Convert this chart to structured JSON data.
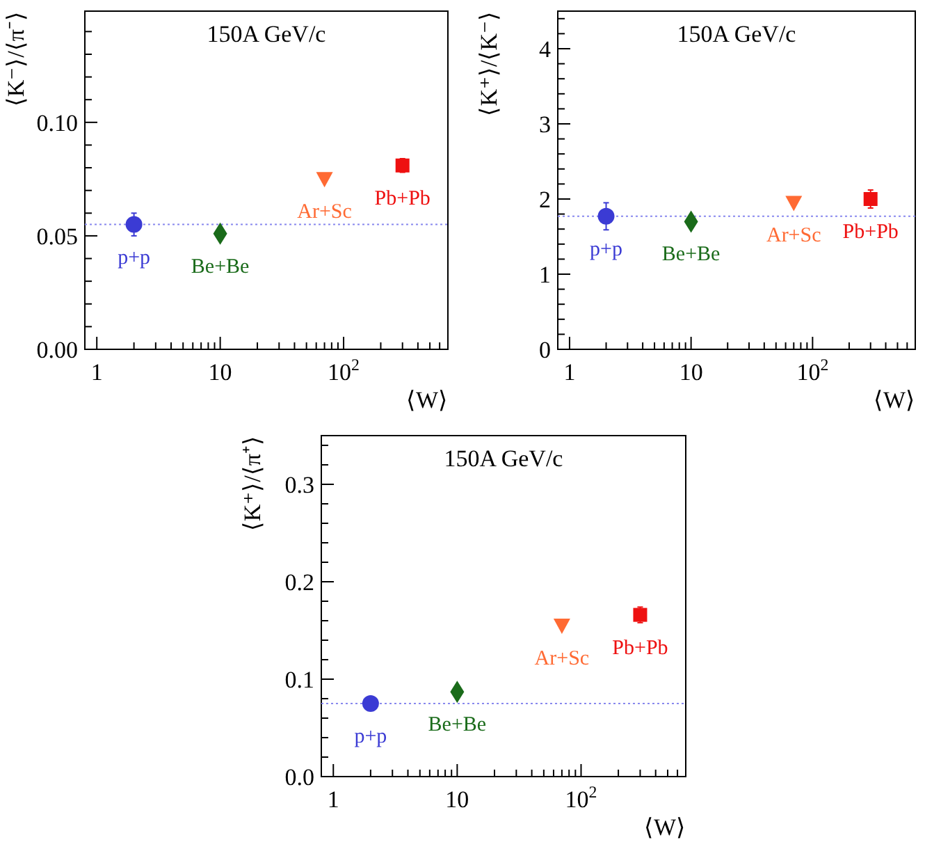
{
  "chart_data": [
    {
      "type": "scatter",
      "title": "150A GeV/c",
      "xlabel": "⟨W⟩",
      "ylabel": "⟨K⁻⟩/⟨π⁻⟩",
      "log": "x",
      "xlim": [
        0.8,
        700
      ],
      "xticks": [
        {
          "value": 1,
          "label": "1"
        },
        {
          "value": 10,
          "label": "10"
        },
        {
          "value": 100,
          "label": "10$^{2}$"
        },
        {
          "value": 2,
          "label": null
        },
        {
          "value": 3,
          "label": null
        },
        {
          "value": 4,
          "label": null
        },
        {
          "value": 5,
          "label": null
        },
        {
          "value": 6,
          "label": null
        },
        {
          "value": 7,
          "label": null
        },
        {
          "value": 8,
          "label": null
        },
        {
          "value": 9,
          "label": null
        },
        {
          "value": 20,
          "label": null
        },
        {
          "value": 30,
          "label": null
        },
        {
          "value": 40,
          "label": null
        },
        {
          "value": 50,
          "label": null
        },
        {
          "value": 60,
          "label": null
        },
        {
          "value": 70,
          "label": null
        },
        {
          "value": 80,
          "label": null
        },
        {
          "value": 90,
          "label": null
        },
        {
          "value": 200,
          "label": null
        },
        {
          "value": 300,
          "label": null
        },
        {
          "value": 400,
          "label": null
        },
        {
          "value": 500,
          "label": null
        },
        {
          "value": 600,
          "label": null
        },
        {
          "value": 700,
          "label": null
        }
      ],
      "ylim": [
        0,
        0.149
      ],
      "yticks": [
        {
          "value": 0,
          "label": "0.00"
        },
        {
          "value": 0.05,
          "label": "0.05"
        },
        {
          "value": 0.1,
          "label": "0.10"
        },
        {
          "value": 0.01,
          "label": null
        },
        {
          "value": 0.02,
          "label": null
        },
        {
          "value": 0.03,
          "label": null
        },
        {
          "value": 0.04,
          "label": null
        },
        {
          "value": 0.06,
          "label": null
        },
        {
          "value": 0.07,
          "label": null
        },
        {
          "value": 0.08,
          "label": null
        },
        {
          "value": 0.09,
          "label": null
        },
        {
          "value": 0.11,
          "label": null
        },
        {
          "value": 0.12,
          "label": null
        },
        {
          "value": 0.13,
          "label": null
        },
        {
          "value": 0.14,
          "label": null
        }
      ],
      "ref_lines": [
        {
          "axis": "y",
          "value": 0.055,
          "color": "#8888ee",
          "line_style": "dotted"
        }
      ],
      "series": [
        {
          "name": "p+p",
          "color": "#3b3bd4",
          "marker": "circle",
          "x": [
            2
          ],
          "values": [
            0.055
          ],
          "errors": [
            0.005
          ]
        },
        {
          "name": "Be+Be",
          "color": "#1a6b1a",
          "marker": "diamond",
          "x": [
            10
          ],
          "values": [
            0.051
          ]
        },
        {
          "name": "Ar+Sc",
          "color": "#ff6a33",
          "marker": "triangle",
          "x": [
            70
          ],
          "values": [
            0.075
          ]
        },
        {
          "name": "Pb+Pb",
          "color": "#ee1111",
          "marker": "square",
          "x": [
            300
          ],
          "values": [
            0.081
          ],
          "errors": [
            0.003
          ]
        }
      ]
    },
    {
      "type": "scatter",
      "title": "150A GeV/c",
      "xlabel": "⟨W⟩",
      "ylabel": "⟨K⁺⟩/⟨K⁻⟩",
      "log": "x",
      "xlim": [
        0.8,
        700
      ],
      "xticks": [
        {
          "value": 1,
          "label": "1"
        },
        {
          "value": 10,
          "label": "10"
        },
        {
          "value": 100,
          "label": "10$^{2}$"
        },
        {
          "value": 2,
          "label": null
        },
        {
          "value": 3,
          "label": null
        },
        {
          "value": 4,
          "label": null
        },
        {
          "value": 5,
          "label": null
        },
        {
          "value": 6,
          "label": null
        },
        {
          "value": 7,
          "label": null
        },
        {
          "value": 8,
          "label": null
        },
        {
          "value": 9,
          "label": null
        },
        {
          "value": 20,
          "label": null
        },
        {
          "value": 30,
          "label": null
        },
        {
          "value": 40,
          "label": null
        },
        {
          "value": 50,
          "label": null
        },
        {
          "value": 60,
          "label": null
        },
        {
          "value": 70,
          "label": null
        },
        {
          "value": 80,
          "label": null
        },
        {
          "value": 90,
          "label": null
        },
        {
          "value": 200,
          "label": null
        },
        {
          "value": 300,
          "label": null
        },
        {
          "value": 400,
          "label": null
        },
        {
          "value": 500,
          "label": null
        },
        {
          "value": 600,
          "label": null
        },
        {
          "value": 700,
          "label": null
        }
      ],
      "ylim": [
        0,
        4.5
      ],
      "yticks": [
        {
          "value": 0,
          "label": "0"
        },
        {
          "value": 1,
          "label": "1"
        },
        {
          "value": 2,
          "label": "2"
        },
        {
          "value": 3,
          "label": "3"
        },
        {
          "value": 4,
          "label": "4"
        },
        {
          "value": 0.2,
          "label": null
        },
        {
          "value": 0.4,
          "label": null
        },
        {
          "value": 0.6,
          "label": null
        },
        {
          "value": 0.8,
          "label": null
        },
        {
          "value": 1.2,
          "label": null
        },
        {
          "value": 1.4,
          "label": null
        },
        {
          "value": 1.6,
          "label": null
        },
        {
          "value": 1.8,
          "label": null
        },
        {
          "value": 2.2,
          "label": null
        },
        {
          "value": 2.4,
          "label": null
        },
        {
          "value": 2.6,
          "label": null
        },
        {
          "value": 2.8,
          "label": null
        },
        {
          "value": 3.2,
          "label": null
        },
        {
          "value": 3.4,
          "label": null
        },
        {
          "value": 3.6,
          "label": null
        },
        {
          "value": 3.8,
          "label": null
        },
        {
          "value": 4.2,
          "label": null
        },
        {
          "value": 4.4,
          "label": null
        }
      ],
      "ref_lines": [
        {
          "axis": "y",
          "value": 1.77,
          "color": "#8888ee",
          "line_style": "dotted"
        }
      ],
      "series": [
        {
          "name": "p+p",
          "color": "#3b3bd4",
          "marker": "circle",
          "x": [
            2
          ],
          "values": [
            1.77
          ],
          "errors": [
            0.18
          ]
        },
        {
          "name": "Be+Be",
          "color": "#1a6b1a",
          "marker": "diamond",
          "x": [
            10
          ],
          "values": [
            1.7
          ]
        },
        {
          "name": "Ar+Sc",
          "color": "#ff6a33",
          "marker": "triangle",
          "x": [
            70
          ],
          "values": [
            1.95
          ]
        },
        {
          "name": "Pb+Pb",
          "color": "#ee1111",
          "marker": "square",
          "x": [
            300
          ],
          "values": [
            2.0
          ],
          "errors": [
            0.12
          ]
        }
      ]
    },
    {
      "type": "scatter",
      "title": "150A GeV/c",
      "xlabel": "⟨W⟩",
      "ylabel": "⟨K⁺⟩/⟨π⁺⟩",
      "log": "x",
      "xlim": [
        0.8,
        700
      ],
      "xticks": [
        {
          "value": 1,
          "label": "1"
        },
        {
          "value": 10,
          "label": "10"
        },
        {
          "value": 100,
          "label": "10$^{2}$"
        },
        {
          "value": 2,
          "label": null
        },
        {
          "value": 3,
          "label": null
        },
        {
          "value": 4,
          "label": null
        },
        {
          "value": 5,
          "label": null
        },
        {
          "value": 6,
          "label": null
        },
        {
          "value": 7,
          "label": null
        },
        {
          "value": 8,
          "label": null
        },
        {
          "value": 9,
          "label": null
        },
        {
          "value": 20,
          "label": null
        },
        {
          "value": 30,
          "label": null
        },
        {
          "value": 40,
          "label": null
        },
        {
          "value": 50,
          "label": null
        },
        {
          "value": 60,
          "label": null
        },
        {
          "value": 70,
          "label": null
        },
        {
          "value": 80,
          "label": null
        },
        {
          "value": 90,
          "label": null
        },
        {
          "value": 200,
          "label": null
        },
        {
          "value": 300,
          "label": null
        },
        {
          "value": 400,
          "label": null
        },
        {
          "value": 500,
          "label": null
        },
        {
          "value": 600,
          "label": null
        },
        {
          "value": 700,
          "label": null
        }
      ],
      "ylim": [
        0,
        0.35
      ],
      "yticks": [
        {
          "value": 0,
          "label": "0.0"
        },
        {
          "value": 0.1,
          "label": "0.1"
        },
        {
          "value": 0.2,
          "label": "0.2"
        },
        {
          "value": 0.3,
          "label": "0.3"
        },
        {
          "value": 0.02,
          "label": null
        },
        {
          "value": 0.04,
          "label": null
        },
        {
          "value": 0.06,
          "label": null
        },
        {
          "value": 0.08,
          "label": null
        },
        {
          "value": 0.12,
          "label": null
        },
        {
          "value": 0.14,
          "label": null
        },
        {
          "value": 0.16,
          "label": null
        },
        {
          "value": 0.18,
          "label": null
        },
        {
          "value": 0.22,
          "label": null
        },
        {
          "value": 0.24,
          "label": null
        },
        {
          "value": 0.26,
          "label": null
        },
        {
          "value": 0.28,
          "label": null
        },
        {
          "value": 0.32,
          "label": null
        },
        {
          "value": 0.34,
          "label": null
        }
      ],
      "ref_lines": [
        {
          "axis": "y",
          "value": 0.075,
          "color": "#8888ee",
          "line_style": "dotted"
        }
      ],
      "series": [
        {
          "name": "p+p",
          "color": "#3b3bd4",
          "marker": "circle",
          "x": [
            2
          ],
          "values": [
            0.075
          ]
        },
        {
          "name": "Be+Be",
          "color": "#1a6b1a",
          "marker": "diamond",
          "x": [
            10
          ],
          "values": [
            0.087
          ]
        },
        {
          "name": "Ar+Sc",
          "color": "#ff6a33",
          "marker": "triangle",
          "x": [
            70
          ],
          "values": [
            0.155
          ]
        },
        {
          "name": "Pb+Pb",
          "color": "#ee1111",
          "marker": "square",
          "x": [
            300
          ],
          "values": [
            0.166
          ],
          "errors": [
            0.008
          ]
        }
      ]
    }
  ]
}
